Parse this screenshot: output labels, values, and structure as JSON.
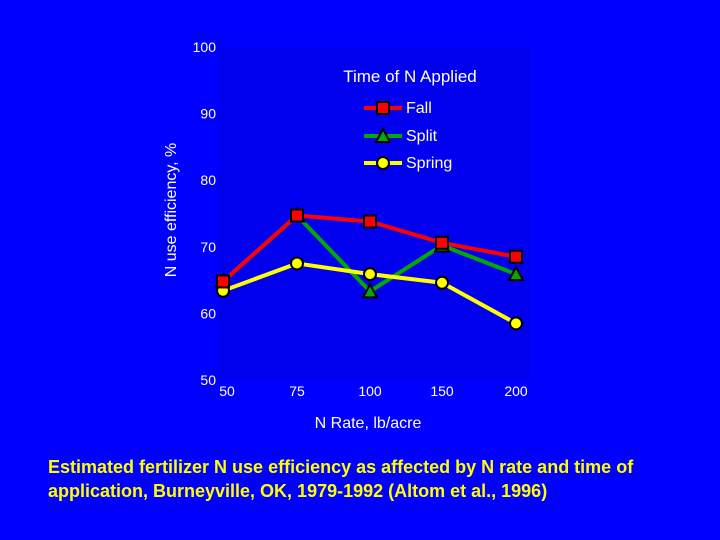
{
  "colors": {
    "background": "#0000FF",
    "plot_area": "#0000EE",
    "text": "#FFFFFF",
    "caption": "#FFFF00"
  },
  "chart_data": {
    "type": "line",
    "title": "",
    "legend_title": "Time of N Applied",
    "legend_position": "top-right",
    "xlabel": "N Rate, lb/acre",
    "ylabel": "N use efficiency, %",
    "categories": [
      "50",
      "75",
      "100",
      "150",
      "200"
    ],
    "ylim": [
      50,
      100
    ],
    "y_ticks": [
      "50",
      "60",
      "70",
      "80",
      "90",
      "100"
    ],
    "grid": false,
    "series": [
      {
        "name": "Fall",
        "marker": "square",
        "color": "#FF0000",
        "values": [
          64.8,
          74.7,
          73.8,
          70.6,
          68.5
        ]
      },
      {
        "name": "Split",
        "marker": "triangle",
        "color": "#00AA00",
        "values": [
          64.8,
          74.7,
          63.3,
          70.2,
          65.9
        ]
      },
      {
        "name": "Spring",
        "marker": "circle",
        "color": "#FFFF00",
        "values": [
          63.4,
          67.5,
          65.9,
          64.6,
          58.5
        ]
      }
    ]
  },
  "caption": "Estimated fertilizer N use efficiency as affected by N rate and time of application, Burneyville, OK, 1979-1992 (Altom et al., 1996)"
}
